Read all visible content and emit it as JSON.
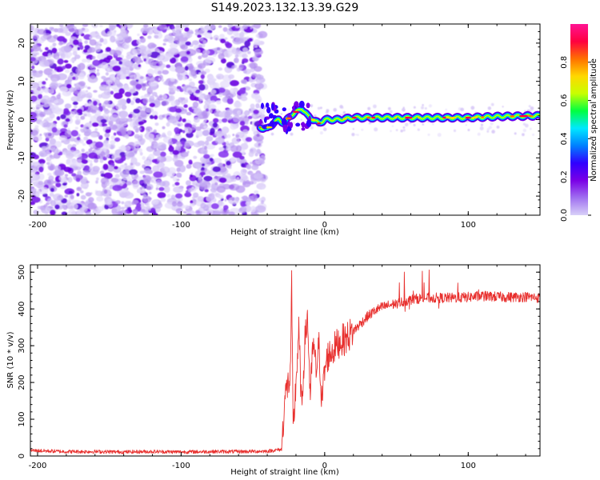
{
  "figure": {
    "title": "S149.2023.132.13.39.G29"
  },
  "chart_data": [
    {
      "type": "heatmap",
      "xlabel": "Height of straight line (km)",
      "ylabel": "Frequency (Hz)",
      "xlim": [
        -205,
        150
      ],
      "ylim": [
        -25,
        25
      ],
      "xticks": [
        -200,
        -100,
        0,
        100
      ],
      "yticks": [
        -20,
        -10,
        0,
        10,
        20
      ],
      "noise_region_x": [
        -205,
        -45
      ],
      "signal_region_x": [
        -45,
        150
      ],
      "ridge": [
        {
          "x": -45,
          "y": -2.0
        },
        {
          "x": -40,
          "y": -2.5
        },
        {
          "x": -36,
          "y": -1.0
        },
        {
          "x": -32,
          "y": 0.0
        },
        {
          "x": -28,
          "y": -1.0
        },
        {
          "x": -24,
          "y": 1.0
        },
        {
          "x": -20,
          "y": 2.0
        },
        {
          "x": -16,
          "y": 3.0
        },
        {
          "x": -12,
          "y": 1.0
        },
        {
          "x": -8,
          "y": 0.0
        },
        {
          "x": -4,
          "y": -1.0
        },
        {
          "x": 0,
          "y": 0.0
        },
        {
          "x": 5,
          "y": 0.0
        },
        {
          "x": 10,
          "y": 0.0
        },
        {
          "x": 20,
          "y": 0.5
        },
        {
          "x": 30,
          "y": 0.5
        },
        {
          "x": 40,
          "y": 0.5
        },
        {
          "x": 60,
          "y": 0.5
        },
        {
          "x": 80,
          "y": 0.5
        },
        {
          "x": 100,
          "y": 0.5
        },
        {
          "x": 120,
          "y": 0.8
        },
        {
          "x": 150,
          "y": 1.0
        }
      ],
      "colorbar": {
        "label": "Normalized spectral amplitude",
        "range": [
          0,
          1
        ],
        "ticks": [
          "0.0",
          "0.2",
          "0.4",
          "0.6",
          "0.8"
        ],
        "colormap": [
          "#d8d0f8",
          "#a070f0",
          "#7a00e6",
          "#3000ff",
          "#0080ff",
          "#00e8ff",
          "#00ff40",
          "#c8ff00",
          "#ffd800",
          "#ff7000",
          "#ff0040",
          "#ff1493"
        ]
      }
    },
    {
      "type": "line",
      "xlabel": "Height of straight line (km)",
      "ylabel": "SNR (10 * v/v)",
      "xlim": [
        -205,
        150
      ],
      "ylim": [
        0,
        520
      ],
      "xticks": [
        -200,
        -100,
        0,
        100
      ],
      "yticks": [
        0,
        100,
        200,
        300,
        400,
        500
      ],
      "color": "#e8302e",
      "series": [
        {
          "x": [
            -205,
            -180,
            -160,
            -140,
            -120,
            -100,
            -80,
            -60,
            -40,
            -30,
            -28,
            -26,
            -24,
            -23,
            -22,
            -20,
            -18,
            -16,
            -14,
            -12,
            -10,
            -8,
            -6,
            -4,
            -2,
            0,
            2,
            5,
            8,
            10,
            15,
            20,
            25,
            30,
            35,
            40,
            45,
            50,
            55,
            60,
            65,
            70,
            80,
            90,
            100,
            110,
            120,
            130,
            140,
            150
          ],
          "y": [
            15,
            12,
            12,
            11,
            12,
            11,
            12,
            12,
            13,
            18,
            150,
            190,
            210,
            460,
            60,
            200,
            340,
            120,
            300,
            380,
            160,
            310,
            230,
            300,
            150,
            230,
            270,
            285,
            300,
            310,
            320,
            340,
            360,
            380,
            395,
            405,
            410,
            415,
            420,
            425,
            428,
            430,
            430,
            430,
            432,
            435,
            433,
            432,
            433,
            430
          ]
        }
      ]
    }
  ]
}
